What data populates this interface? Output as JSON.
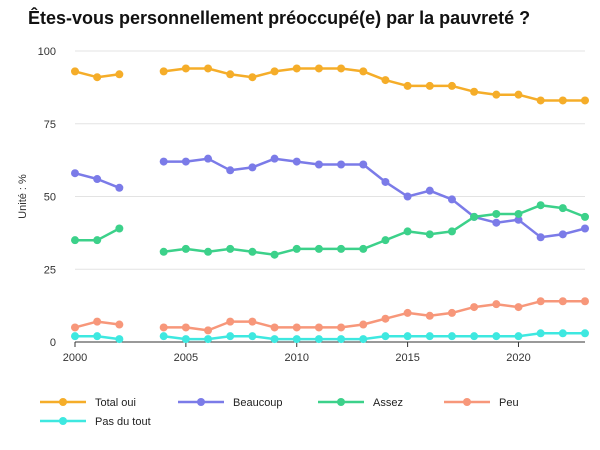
{
  "chart_data": {
    "type": "line",
    "title": "Êtes-vous personnellement préoccupé(e) par la pauvreté ?",
    "xlabel": "",
    "ylabel": "Unité : %",
    "xlim": [
      2000,
      2023
    ],
    "ylim": [
      0,
      100
    ],
    "x_ticks": [
      2000,
      2005,
      2010,
      2015,
      2020
    ],
    "y_ticks": [
      0,
      25,
      50,
      75,
      100
    ],
    "grid": "horizontal",
    "legend_position": "bottom",
    "x": [
      2000,
      2001,
      2002,
      2003,
      2004,
      2005,
      2006,
      2007,
      2008,
      2009,
      2010,
      2011,
      2012,
      2013,
      2014,
      2015,
      2016,
      2017,
      2018,
      2019,
      2020,
      2021,
      2022,
      2023
    ],
    "series": [
      {
        "name": "Total oui",
        "color": "#f5ad29",
        "values": [
          93,
          91,
          92,
          null,
          93,
          94,
          94,
          92,
          91,
          93,
          94,
          94,
          94,
          93,
          90,
          88,
          88,
          88,
          86,
          85,
          85,
          83,
          83,
          83
        ]
      },
      {
        "name": "Beaucoup",
        "color": "#7b7be8",
        "values": [
          58,
          56,
          53,
          null,
          62,
          62,
          63,
          59,
          60,
          63,
          62,
          61,
          61,
          61,
          55,
          50,
          52,
          49,
          43,
          41,
          42,
          36,
          37,
          39
        ]
      },
      {
        "name": "Assez",
        "color": "#3cd18a",
        "values": [
          35,
          35,
          39,
          null,
          31,
          32,
          31,
          32,
          31,
          30,
          32,
          32,
          32,
          32,
          35,
          38,
          37,
          38,
          43,
          44,
          44,
          47,
          46,
          43
        ]
      },
      {
        "name": "Peu",
        "color": "#f7977a",
        "values": [
          5,
          7,
          6,
          null,
          5,
          5,
          4,
          7,
          7,
          5,
          5,
          5,
          5,
          6,
          8,
          10,
          9,
          10,
          12,
          13,
          12,
          14,
          14,
          14
        ]
      },
      {
        "name": "Pas du tout",
        "color": "#3ee8e0",
        "values": [
          2,
          2,
          1,
          null,
          2,
          1,
          1,
          2,
          2,
          1,
          1,
          1,
          1,
          1,
          2,
          2,
          2,
          2,
          2,
          2,
          2,
          3,
          3,
          3
        ]
      }
    ]
  }
}
